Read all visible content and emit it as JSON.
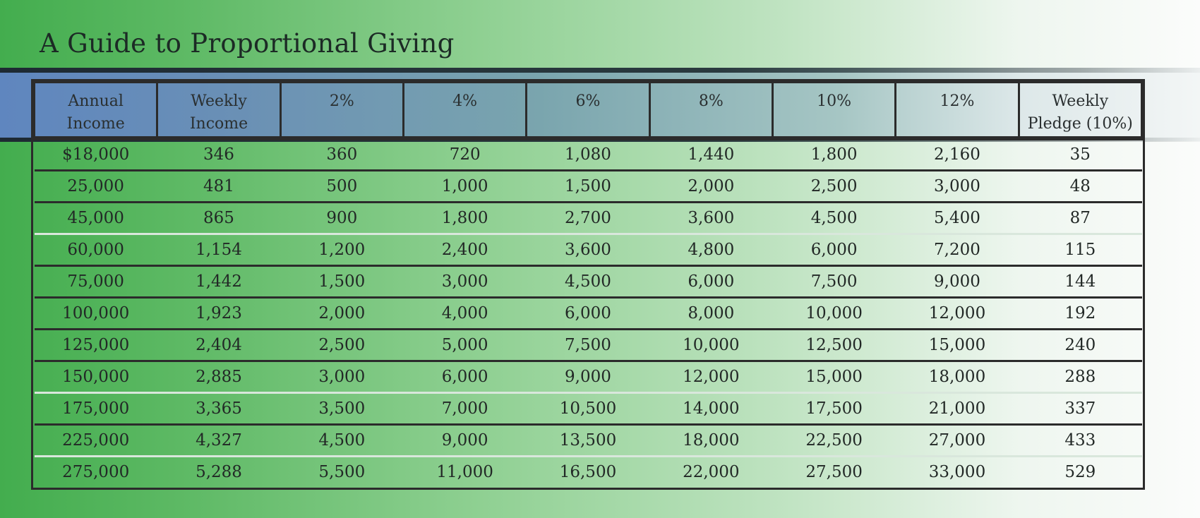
{
  "title": "A Guide to Proportional Giving",
  "colors": {
    "background_start": "#43ad4e",
    "background_end": "#fbfcfb",
    "header_band_start": "#5f86bf",
    "header_band_end": "#f3f6f6",
    "border": "#2b2b2b",
    "text": "#222826"
  },
  "table": {
    "headers": [
      {
        "line1": "Annual",
        "line2": "Income"
      },
      {
        "line1": "Weekly",
        "line2": "Income"
      },
      {
        "line1": "2%",
        "line2": ""
      },
      {
        "line1": "4%",
        "line2": ""
      },
      {
        "line1": "6%",
        "line2": ""
      },
      {
        "line1": "8%",
        "line2": ""
      },
      {
        "line1": "10%",
        "line2": ""
      },
      {
        "line1": "12%",
        "line2": ""
      },
      {
        "line1": "Weekly",
        "line2": "Pledge (10%)"
      }
    ],
    "rows": [
      [
        "$18,000",
        "346",
        "360",
        "720",
        "1,080",
        "1,440",
        "1,800",
        "2,160",
        "35"
      ],
      [
        "25,000",
        "481",
        "500",
        "1,000",
        "1,500",
        "2,000",
        "2,500",
        "3,000",
        "48"
      ],
      [
        "45,000",
        "865",
        "900",
        "1,800",
        "2,700",
        "3,600",
        "4,500",
        "5,400",
        "87"
      ],
      [
        "60,000",
        "1,154",
        "1,200",
        "2,400",
        "3,600",
        "4,800",
        "6,000",
        "7,200",
        "115"
      ],
      [
        "75,000",
        "1,442",
        "1,500",
        "3,000",
        "4,500",
        "6,000",
        "7,500",
        "9,000",
        "144"
      ],
      [
        "100,000",
        "1,923",
        "2,000",
        "4,000",
        "6,000",
        "8,000",
        "10,000",
        "12,000",
        "192"
      ],
      [
        "125,000",
        "2,404",
        "2,500",
        "5,000",
        "7,500",
        "10,000",
        "12,500",
        "15,000",
        "240"
      ],
      [
        "150,000",
        "2,885",
        "3,000",
        "6,000",
        "9,000",
        "12,000",
        "15,000",
        "18,000",
        "288"
      ],
      [
        "175,000",
        "3,365",
        "3,500",
        "7,000",
        "10,500",
        "14,000",
        "17,500",
        "21,000",
        "337"
      ],
      [
        "225,000",
        "4,327",
        "4,500",
        "9,000",
        "13,500",
        "18,000",
        "22,500",
        "27,000",
        "433"
      ],
      [
        "275,000",
        "5,288",
        "5,500",
        "11,000",
        "16,500",
        "22,000",
        "27,500",
        "33,000",
        "529"
      ]
    ]
  }
}
